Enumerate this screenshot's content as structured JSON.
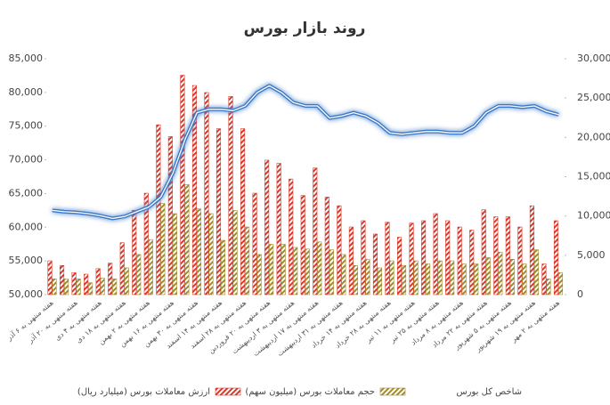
{
  "chart_data": {
    "type": "bar_line",
    "title": "روند بازار بورس",
    "categories": [
      "هفته منتهی به ۶ آذر",
      null,
      "هفته منتهی به ۲۰ آذر",
      null,
      "هفته منتهی به ۴ دی",
      null,
      "هفته منتهی به ۱۸ دی",
      null,
      "هفته منتهی به ۲ بهمن",
      null,
      "هفته منتهی به ۱۶ بهمن",
      null,
      "هفته منتهی به ۳۰ بهمن",
      null,
      "هفته منتهی به ۱۴ اسفند",
      null,
      "هفته منتهی به ۲۸ اسفند",
      null,
      "هفته منتهی به ۲۰ فروردین",
      null,
      "هفته منتهی به ۳ اردیبهشت",
      null,
      "هفته منتهی به ۱۷ اردیبهشت",
      null,
      "هفته منتهی به ۳۱ اردیبهشت",
      null,
      "هفته منتهی به ۱۴ خرداد",
      null,
      "هفته منتهی به ۲۸ خرداد",
      null,
      "هفته منتهی به ۱۱ تیر",
      null,
      "هفته منتهی به ۲۵ تیر",
      null,
      "هفته منتهی به ۸ مرداد",
      null,
      "هفته منتهی به ۲۲ مرداد",
      null,
      "هفته منتهی به ۵ شهریور",
      null,
      "هفته منتهی به ۱۹ شهریور",
      null,
      "هفته منتهی به ۲ مهر"
    ],
    "series": [
      {
        "name": "ارزش معاملات بورس (میلیارد ریال)",
        "type": "bar",
        "axis": "y2",
        "color": "#d8392b",
        "values": [
          4300,
          3700,
          2800,
          2600,
          3300,
          4000,
          6600,
          10700,
          12900,
          21600,
          20100,
          27900,
          26600,
          25700,
          21100,
          25200,
          21100,
          12900,
          17100,
          16700,
          14700,
          12600,
          16100,
          12400,
          11300,
          8600,
          9400,
          7700,
          9200,
          7300,
          9100,
          9400,
          10300,
          9400,
          8600,
          8200,
          10800,
          9900,
          9900,
          8600,
          11300,
          3900,
          9400
        ]
      },
      {
        "name": "حجم معاملات بورس (میلیون سهم)",
        "type": "bar",
        "axis": "y2",
        "color": "#a08a2c",
        "values": [
          2000,
          2000,
          2000,
          1500,
          2100,
          2000,
          3400,
          5100,
          7000,
          11600,
          10300,
          14000,
          10900,
          10300,
          6900,
          10700,
          8600,
          5100,
          6400,
          6400,
          6000,
          5800,
          6700,
          5700,
          5100,
          3700,
          4500,
          3400,
          4300,
          3700,
          4300,
          3900,
          4300,
          4300,
          3900,
          3900,
          4700,
          5400,
          4500,
          3900,
          5700,
          2000,
          2800
        ]
      },
      {
        "name": "شاخص کل بورس",
        "type": "line",
        "axis": "y",
        "color": "#3a78c6",
        "values": [
          62500,
          62300,
          62200,
          62000,
          61700,
          61300,
          61600,
          62300,
          63000,
          64500,
          68000,
          73000,
          77000,
          77500,
          77500,
          77300,
          78000,
          80000,
          81000,
          80000,
          78500,
          78000,
          78000,
          76200,
          76500,
          77000,
          76500,
          75500,
          74000,
          73800,
          74000,
          74200,
          74200,
          74000,
          74000,
          75000,
          77000,
          78000,
          78000,
          77800,
          78000,
          77200,
          76700
        ]
      }
    ],
    "ylim": [
      50000,
      85000
    ],
    "yticks": [
      {
        "value": 50000,
        "label": "50,000"
      },
      {
        "value": 55000,
        "label": "55,000"
      },
      {
        "value": 60000,
        "label": "60,000"
      },
      {
        "value": 65000,
        "label": "65,000"
      },
      {
        "value": 70000,
        "label": "70,000"
      },
      {
        "value": 75000,
        "label": "75,000"
      },
      {
        "value": 80000,
        "label": "80,000"
      },
      {
        "value": 85000,
        "label": "85,000"
      }
    ],
    "y2lim": [
      0,
      30000
    ],
    "y2ticks": [
      0,
      {
        "value": 5000,
        "label": "5,000"
      },
      {
        "value": 10000,
        "label": "10,000"
      },
      {
        "value": 15000,
        "label": "15,000"
      },
      {
        "value": 20000,
        "label": "20,000"
      },
      {
        "value": 25000,
        "label": "25,000"
      },
      {
        "value": 30000,
        "label": "30,000"
      }
    ]
  }
}
